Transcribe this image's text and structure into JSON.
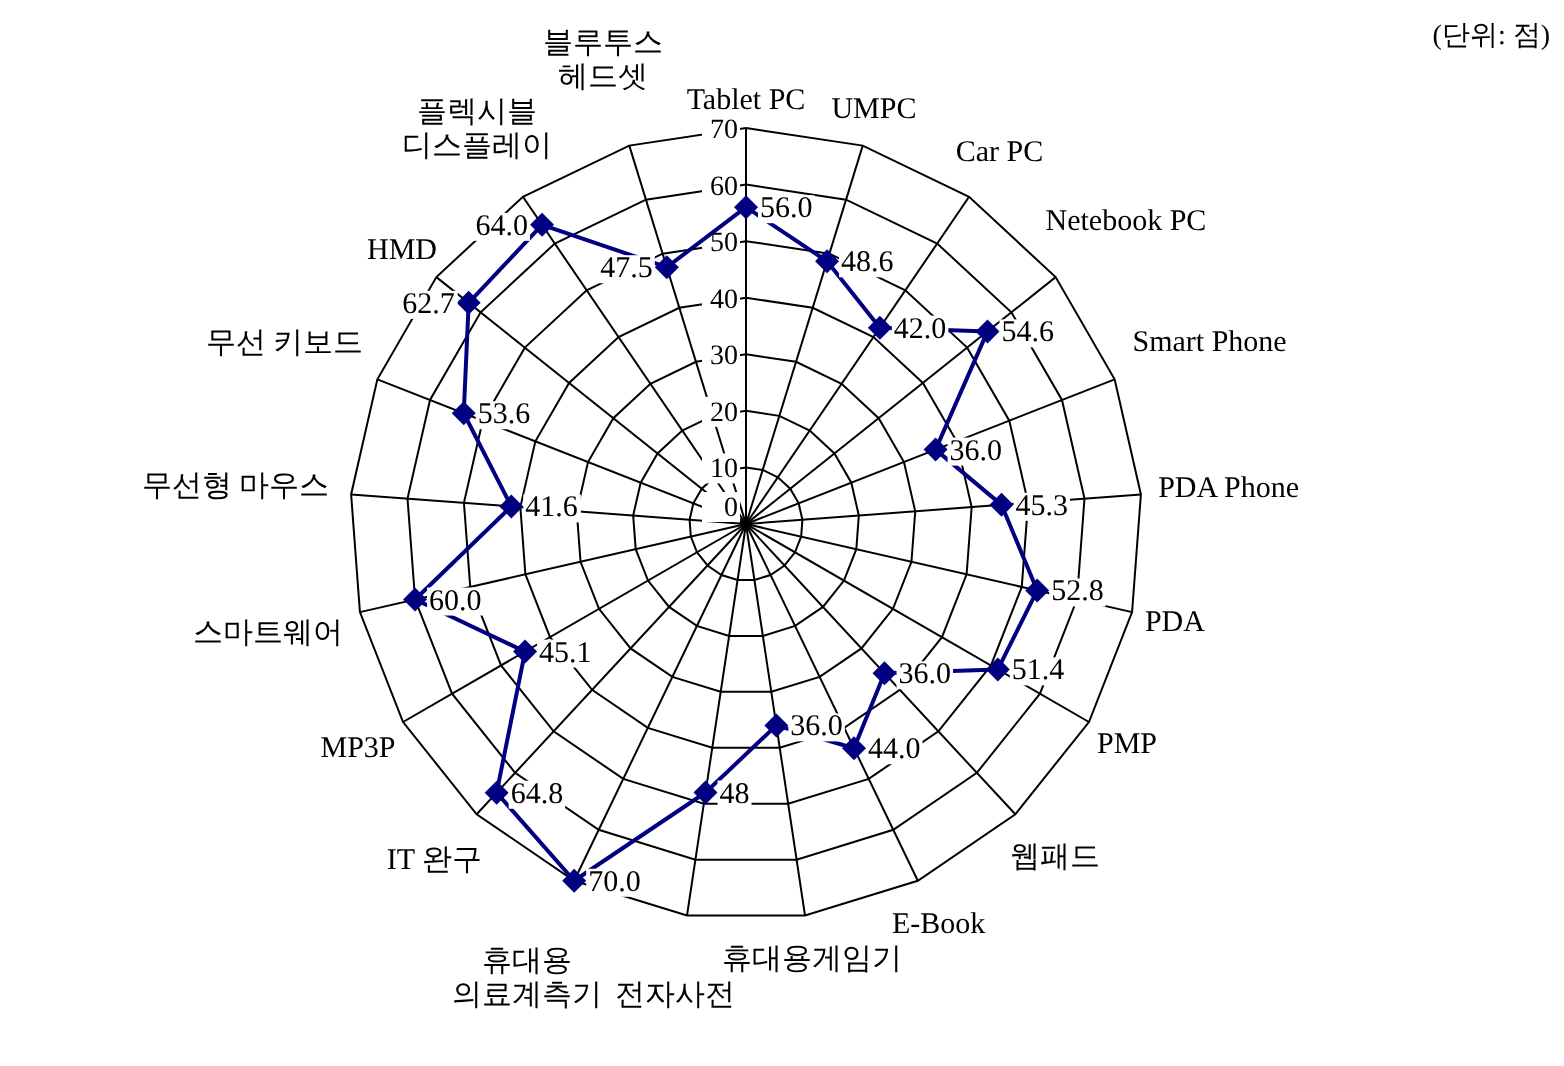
{
  "chart_data": {
    "type": "radar",
    "categories": [
      "Tablet PC",
      "UMPC",
      "Car PC",
      "Netebook PC",
      "Smart Phone",
      "PDA Phone",
      "PDA",
      "PMP",
      "웹패드",
      "E-Book",
      "휴대용게임기",
      "전자사전",
      "휴대용 의료계측기",
      "IT 완구",
      "MP3P",
      "스마트웨어",
      "무선형 마우스",
      "무선 키보드",
      "HMD",
      "플렉시블 디스플레이",
      "블루투스 헤드셋"
    ],
    "series": [
      {
        "color": "#000080",
        "values": [
          56.0,
          48.6,
          42.0,
          54.6,
          36.0,
          45.3,
          52.8,
          51.4,
          36.0,
          44.0,
          36.0,
          48,
          70.0,
          64.8,
          45.1,
          60.0,
          41.6,
          53.6,
          62.7,
          64.0,
          47.5
        ],
        "value_labels": [
          "56.0",
          "48.6",
          "42.0",
          "54.6",
          "36.0",
          "45.3",
          "52.8",
          "51.4",
          "36.0",
          "44.0",
          "36.0",
          "48",
          "70.0",
          "64.8",
          "45.1",
          "60.0",
          "41.6",
          "53.6",
          "62.7",
          "64.0",
          "47.5"
        ]
      }
    ],
    "ylim": [
      0,
      70
    ],
    "yticks": [
      0,
      10,
      20,
      30,
      40,
      50,
      60,
      70
    ],
    "marker": "diamond",
    "line_style": "solid",
    "grid": true,
    "legend": false,
    "annotations": [
      "(단위: 점)"
    ]
  }
}
